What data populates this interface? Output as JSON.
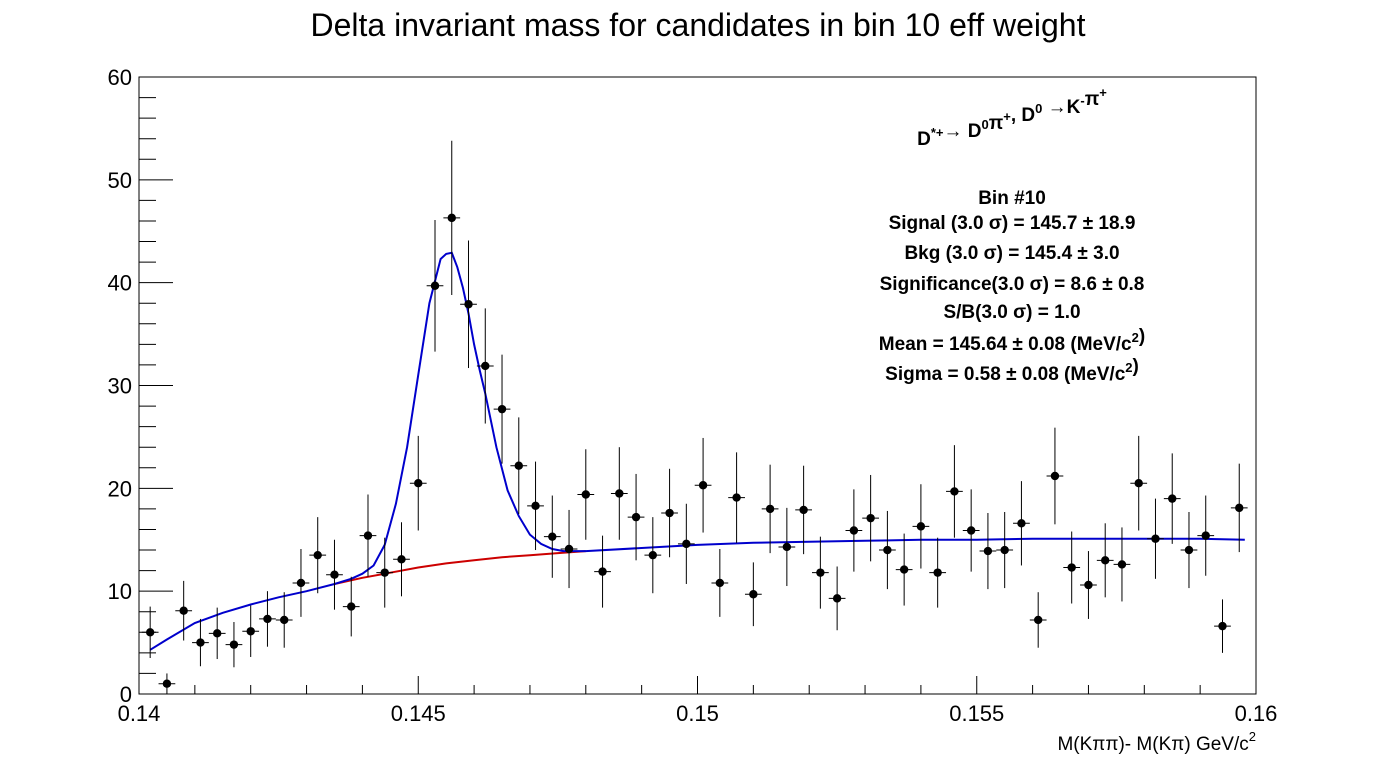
{
  "chart_data": {
    "type": "scatter",
    "title": "Delta invariant mass for candidates in bin 10 eff weight",
    "xlabel": {
      "main": "M(Kππ)- M(Kπ) GeV/c",
      "sup": "2"
    },
    "ylabel": "",
    "xlim": [
      0.14,
      0.16
    ],
    "ylim": [
      0,
      60
    ],
    "x_ticks": [
      {
        "value": 0.14,
        "label": "0.14"
      },
      {
        "value": 0.145,
        "label": "0.145"
      },
      {
        "value": 0.15,
        "label": "0.15"
      },
      {
        "value": 0.155,
        "label": "0.155"
      },
      {
        "value": 0.16,
        "label": "0.16"
      }
    ],
    "y_ticks": [
      {
        "value": 0,
        "label": "0"
      },
      {
        "value": 10,
        "label": "10"
      },
      {
        "value": 20,
        "label": "20"
      },
      {
        "value": 30,
        "label": "30"
      },
      {
        "value": 40,
        "label": "40"
      },
      {
        "value": 50,
        "label": "50"
      },
      {
        "value": 60,
        "label": "60"
      }
    ],
    "grid": false,
    "colors": {
      "data": "#000000",
      "total_fit": "#0000cc",
      "background_fit": "#cc0000"
    },
    "bin_half_width": 0.00015,
    "series": [
      {
        "kind": "points_with_errors",
        "x": [
          0.1402,
          0.1405,
          0.1408,
          0.1411,
          0.1414,
          0.1417,
          0.142,
          0.1423,
          0.1426,
          0.1429,
          0.1432,
          0.1435,
          0.1438,
          0.1441,
          0.1444,
          0.1447,
          0.145,
          0.1453,
          0.1456,
          0.1459,
          0.1462,
          0.1465,
          0.1468,
          0.1471,
          0.1474,
          0.1477,
          0.148,
          0.1483,
          0.1486,
          0.1489,
          0.1492,
          0.1495,
          0.1498,
          0.1501,
          0.1504,
          0.1507,
          0.151,
          0.1513,
          0.1516,
          0.1519,
          0.1522,
          0.1525,
          0.1528,
          0.1531,
          0.1534,
          0.1537,
          0.154,
          0.1543,
          0.1546,
          0.1549,
          0.1552,
          0.1555,
          0.1558,
          0.1561,
          0.1564,
          0.1567,
          0.157,
          0.1573,
          0.1576,
          0.1579,
          0.1582,
          0.1585,
          0.1588,
          0.1591,
          0.1594,
          0.1597
        ],
        "y": [
          6.0,
          1.0,
          8.1,
          5.0,
          5.9,
          4.8,
          6.1,
          7.3,
          7.2,
          10.8,
          13.5,
          11.6,
          8.5,
          15.4,
          11.8,
          13.1,
          20.5,
          39.7,
          46.3,
          37.9,
          31.9,
          27.7,
          22.2,
          18.3,
          15.3,
          14.1,
          19.4,
          11.9,
          19.5,
          17.2,
          13.5,
          17.6,
          14.6,
          20.3,
          10.8,
          19.1,
          9.7,
          18.0,
          14.3,
          17.9,
          11.8,
          9.3,
          15.9,
          17.1,
          14.0,
          12.1,
          16.3,
          11.8,
          19.7,
          15.9,
          13.9,
          14.0,
          16.6,
          7.2,
          21.2,
          12.3,
          10.6,
          13.0,
          12.6,
          20.5,
          15.1,
          19.0,
          14.0,
          15.4,
          6.6,
          18.1
        ],
        "y_err": [
          2.5,
          1.0,
          2.9,
          2.3,
          2.5,
          2.2,
          2.5,
          2.7,
          2.7,
          3.3,
          3.7,
          3.4,
          2.9,
          4.0,
          3.4,
          3.6,
          4.6,
          6.4,
          7.5,
          6.2,
          5.6,
          5.3,
          4.7,
          4.3,
          4.0,
          3.8,
          4.4,
          3.5,
          4.5,
          4.2,
          3.7,
          4.3,
          3.9,
          4.6,
          3.3,
          4.4,
          3.1,
          4.3,
          3.8,
          4.3,
          3.5,
          3.1,
          4.0,
          4.2,
          3.8,
          3.5,
          4.1,
          3.4,
          4.5,
          4.0,
          3.7,
          3.7,
          4.1,
          2.7,
          4.7,
          3.5,
          3.3,
          3.6,
          3.6,
          4.6,
          3.9,
          4.4,
          3.7,
          3.9,
          2.6,
          4.3
        ]
      },
      {
        "kind": "line",
        "role": "total_fit",
        "x": [
          0.1402,
          0.1405,
          0.141,
          0.1415,
          0.142,
          0.1425,
          0.143,
          0.1435,
          0.1438,
          0.144,
          0.1442,
          0.1444,
          0.1446,
          0.1448,
          0.145,
          0.1452,
          0.1454,
          0.1455,
          0.1456,
          0.1457,
          0.1458,
          0.1459,
          0.146,
          0.1461,
          0.1462,
          0.1464,
          0.1466,
          0.1468,
          0.147,
          0.1472,
          0.1474,
          0.1476,
          0.148,
          0.149,
          0.15,
          0.151,
          0.152,
          0.153,
          0.154,
          0.155,
          0.156,
          0.157,
          0.158,
          0.159,
          0.1598
        ],
        "y": [
          4.3,
          5.3,
          6.9,
          7.9,
          8.7,
          9.4,
          10.0,
          10.7,
          11.2,
          11.7,
          12.5,
          14.5,
          18.5,
          24.0,
          31.0,
          38.0,
          42.3,
          42.8,
          42.9,
          41.5,
          39.5,
          37.0,
          34.0,
          31.5,
          29.2,
          24.0,
          19.8,
          17.3,
          15.5,
          14.6,
          14.1,
          13.9,
          13.9,
          14.2,
          14.5,
          14.7,
          14.8,
          14.9,
          15.0,
          15.0,
          15.1,
          15.1,
          15.1,
          15.1,
          15.0
        ]
      },
      {
        "kind": "line",
        "role": "background_fit",
        "x": [
          0.1435,
          0.144,
          0.1445,
          0.145,
          0.1455,
          0.146,
          0.1465,
          0.147,
          0.1475,
          0.148
        ],
        "y": [
          10.7,
          11.3,
          11.8,
          12.3,
          12.7,
          13.0,
          13.3,
          13.5,
          13.7,
          13.9
        ]
      }
    ],
    "annotation": [
      {
        "runs": [
          {
            "t": "D"
          },
          {
            "t": "*+",
            "sup": true
          },
          {
            "t": "→ D"
          },
          {
            "t": "0",
            "sup": true
          },
          {
            "t": "π"
          },
          {
            "t": "+",
            "sup": true
          },
          {
            "t": ", D"
          },
          {
            "t": "0",
            "sup": true
          },
          {
            "t": "  →K"
          },
          {
            "t": "-",
            "sup": true
          },
          {
            "t": "π"
          },
          {
            "t": "+",
            "sup": true
          }
        ]
      },
      {
        "runs": [
          {
            "t": "Bin #10"
          }
        ]
      },
      {
        "runs": [
          {
            "t": "Signal (3.0  σ) =  145.7 ± 18.9"
          }
        ]
      },
      {
        "runs": [
          {
            "t": "Bkg (3.0  σ) =  145.4 ± 3.0"
          }
        ]
      },
      {
        "runs": [
          {
            "t": "Significance(3.0  σ) =  8.6 ± 0.8"
          }
        ]
      },
      {
        "runs": [
          {
            "t": "S/B(3.0  σ) =  1.0"
          }
        ]
      },
      {
        "runs": [
          {
            "t": "Mean = 145.64 ± 0.08 (MeV/c"
          },
          {
            "t": "2",
            "sup": true
          },
          {
            "t": ")"
          }
        ]
      },
      {
        "runs": [
          {
            "t": "Sigma = 0.58 ± 0.08 (MeV/c"
          },
          {
            "t": "2",
            "sup": true
          },
          {
            "t": ")"
          }
        ]
      }
    ]
  }
}
